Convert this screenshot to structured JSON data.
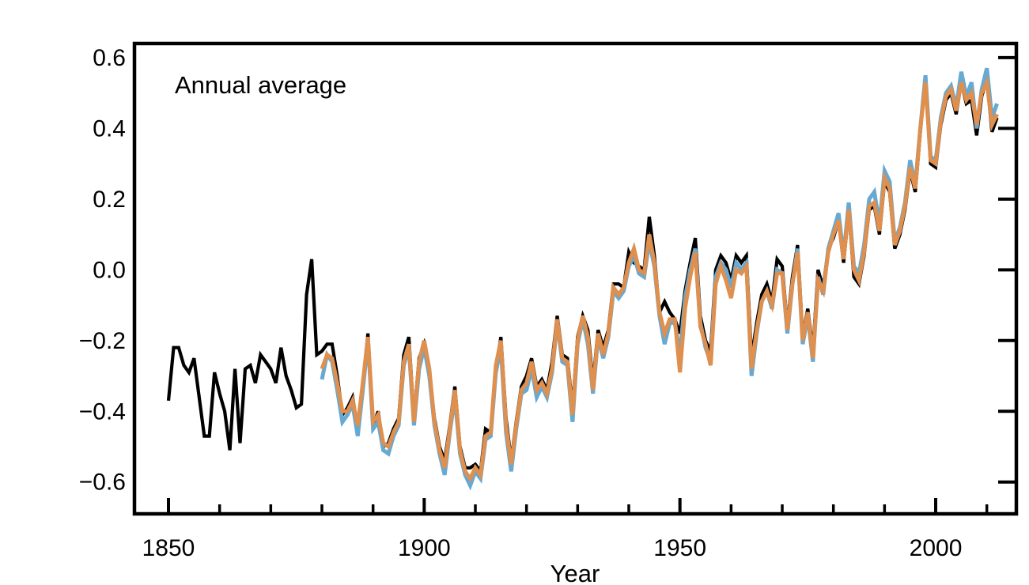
{
  "chart_data": {
    "type": "line",
    "annotation": "Annual average",
    "xlabel": "Year",
    "ylabel": "",
    "grid": false,
    "legend": "none",
    "xlim": [
      1843.35,
      2015.77
    ],
    "ylim": [
      -0.69,
      0.64
    ],
    "x_major_ticks": [
      1850,
      1900,
      1950,
      2000
    ],
    "x_major_tick_labels": [
      "1850",
      "1900",
      "1950",
      "2000"
    ],
    "x_minor_ticks": [
      1860,
      1870,
      1880,
      1890,
      1910,
      1920,
      1930,
      1940,
      1960,
      1970,
      1980,
      1990,
      2010
    ],
    "y_ticks": [
      0.6,
      0.4,
      0.2,
      0.0,
      -0.2,
      -0.4,
      -0.6
    ],
    "y_tick_labels": [
      "0.6",
      "0.4",
      "0.2",
      "0.0",
      "−0.2",
      "−0.4",
      "−0.6"
    ],
    "axis_color": "#000000",
    "series": [
      {
        "name": "black",
        "color": "#000000",
        "line_width": 4.2,
        "start_year": 1850,
        "values": [
          -0.37,
          -0.22,
          -0.22,
          -0.27,
          -0.29,
          -0.25,
          -0.36,
          -0.47,
          -0.47,
          -0.29,
          -0.35,
          -0.4,
          -0.51,
          -0.28,
          -0.49,
          -0.28,
          -0.27,
          -0.32,
          -0.24,
          -0.26,
          -0.28,
          -0.32,
          -0.22,
          -0.3,
          -0.34,
          -0.39,
          -0.38,
          -0.07,
          0.03,
          -0.24,
          -0.23,
          -0.21,
          -0.21,
          -0.3,
          -0.41,
          -0.39,
          -0.36,
          -0.45,
          -0.33,
          -0.18,
          -0.44,
          -0.4,
          -0.5,
          -0.49,
          -0.45,
          -0.42,
          -0.24,
          -0.19,
          -0.42,
          -0.25,
          -0.21,
          -0.29,
          -0.42,
          -0.5,
          -0.54,
          -0.44,
          -0.33,
          -0.5,
          -0.56,
          -0.56,
          -0.55,
          -0.57,
          -0.45,
          -0.46,
          -0.28,
          -0.19,
          -0.42,
          -0.54,
          -0.43,
          -0.33,
          -0.3,
          -0.25,
          -0.33,
          -0.31,
          -0.34,
          -0.26,
          -0.13,
          -0.24,
          -0.25,
          -0.39,
          -0.19,
          -0.13,
          -0.17,
          -0.32,
          -0.17,
          -0.22,
          -0.17,
          -0.04,
          -0.04,
          -0.05,
          0.05,
          0.02,
          0.01,
          0.0,
          0.15,
          0.04,
          -0.12,
          -0.09,
          -0.12,
          -0.14,
          -0.18,
          -0.06,
          0.02,
          0.09,
          -0.13,
          -0.2,
          -0.23,
          0.0,
          0.04,
          0.02,
          -0.03,
          0.04,
          0.02,
          0.04,
          -0.25,
          -0.15,
          -0.07,
          -0.04,
          -0.09,
          0.03,
          0.01,
          -0.16,
          -0.02,
          0.07,
          -0.19,
          -0.11,
          -0.23,
          0.0,
          -0.05,
          0.06,
          0.09,
          0.14,
          0.02,
          0.17,
          -0.02,
          -0.04,
          0.04,
          0.17,
          0.18,
          0.1,
          0.25,
          0.22,
          0.06,
          0.1,
          0.17,
          0.28,
          0.22,
          0.39,
          0.54,
          0.3,
          0.29,
          0.41,
          0.48,
          0.5,
          0.44,
          0.53,
          0.47,
          0.48,
          0.38,
          0.49,
          0.54,
          0.39,
          0.43
        ]
      },
      {
        "name": "blue",
        "color": "#66a9d2",
        "line_width": 5,
        "start_year": 1880,
        "values": [
          -0.31,
          -0.24,
          -0.26,
          -0.34,
          -0.43,
          -0.41,
          -0.38,
          -0.47,
          -0.34,
          -0.2,
          -0.45,
          -0.43,
          -0.51,
          -0.52,
          -0.47,
          -0.44,
          -0.27,
          -0.22,
          -0.44,
          -0.28,
          -0.22,
          -0.3,
          -0.44,
          -0.52,
          -0.58,
          -0.46,
          -0.36,
          -0.52,
          -0.58,
          -0.61,
          -0.57,
          -0.59,
          -0.48,
          -0.47,
          -0.29,
          -0.22,
          -0.46,
          -0.57,
          -0.45,
          -0.35,
          -0.34,
          -0.28,
          -0.36,
          -0.33,
          -0.36,
          -0.29,
          -0.15,
          -0.26,
          -0.27,
          -0.43,
          -0.21,
          -0.14,
          -0.21,
          -0.35,
          -0.19,
          -0.25,
          -0.19,
          -0.06,
          -0.08,
          -0.06,
          0.01,
          0.04,
          -0.01,
          -0.02,
          0.08,
          0.01,
          -0.13,
          -0.21,
          -0.15,
          -0.15,
          -0.24,
          -0.08,
          0.0,
          0.06,
          -0.15,
          -0.22,
          -0.26,
          -0.02,
          0.02,
          0.0,
          -0.05,
          0.02,
          0.0,
          0.02,
          -0.3,
          -0.18,
          -0.09,
          -0.06,
          -0.11,
          0.0,
          -0.01,
          -0.18,
          -0.04,
          0.06,
          -0.21,
          -0.13,
          -0.26,
          -0.02,
          -0.07,
          0.06,
          0.11,
          0.16,
          0.04,
          0.19,
          0.01,
          -0.01,
          0.07,
          0.2,
          0.22,
          0.13,
          0.28,
          0.25,
          0.08,
          0.12,
          0.19,
          0.31,
          0.24,
          0.4,
          0.55,
          0.32,
          0.31,
          0.43,
          0.5,
          0.52,
          0.46,
          0.56,
          0.49,
          0.53,
          0.4,
          0.51,
          0.57,
          0.43,
          0.47
        ]
      },
      {
        "name": "orange",
        "color": "#df8f4e",
        "line_width": 5,
        "start_year": 1880,
        "values": [
          -0.28,
          -0.24,
          -0.25,
          -0.32,
          -0.4,
          -0.4,
          -0.37,
          -0.44,
          -0.32,
          -0.19,
          -0.43,
          -0.41,
          -0.49,
          -0.5,
          -0.46,
          -0.43,
          -0.26,
          -0.21,
          -0.43,
          -0.26,
          -0.2,
          -0.28,
          -0.43,
          -0.51,
          -0.56,
          -0.45,
          -0.34,
          -0.51,
          -0.57,
          -0.59,
          -0.56,
          -0.58,
          -0.47,
          -0.46,
          -0.27,
          -0.2,
          -0.44,
          -0.55,
          -0.44,
          -0.34,
          -0.32,
          -0.26,
          -0.34,
          -0.32,
          -0.35,
          -0.28,
          -0.14,
          -0.25,
          -0.26,
          -0.41,
          -0.2,
          -0.13,
          -0.19,
          -0.34,
          -0.18,
          -0.24,
          -0.18,
          -0.05,
          -0.07,
          -0.05,
          0.02,
          0.06,
          0.0,
          -0.01,
          0.1,
          0.02,
          -0.12,
          -0.18,
          -0.14,
          -0.14,
          -0.29,
          -0.11,
          -0.02,
          0.05,
          -0.16,
          -0.21,
          -0.27,
          -0.04,
          0.01,
          -0.03,
          -0.08,
          0.0,
          -0.01,
          0.01,
          -0.28,
          -0.17,
          -0.09,
          -0.06,
          -0.1,
          -0.01,
          -0.01,
          -0.17,
          -0.04,
          0.05,
          -0.2,
          -0.12,
          -0.25,
          -0.03,
          -0.06,
          0.05,
          0.1,
          0.14,
          0.03,
          0.17,
          0.0,
          -0.03,
          0.05,
          0.18,
          0.19,
          0.11,
          0.26,
          0.23,
          0.07,
          0.11,
          0.18,
          0.29,
          0.23,
          0.4,
          0.53,
          0.31,
          0.3,
          0.42,
          0.49,
          0.51,
          0.45,
          0.53,
          0.48,
          0.5,
          0.41,
          0.5,
          0.53,
          0.41,
          0.44
        ]
      }
    ]
  }
}
